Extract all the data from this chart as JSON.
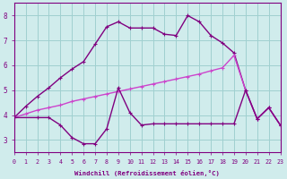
{
  "line1_x": [
    0,
    1,
    2,
    3,
    4,
    5,
    6,
    7,
    8,
    9,
    10,
    11,
    12,
    13,
    14,
    15,
    16,
    17,
    18,
    19,
    20,
    21,
    22,
    23
  ],
  "line1_y": [
    3.9,
    4.35,
    4.75,
    5.1,
    5.5,
    5.85,
    6.15,
    6.85,
    7.55,
    7.75,
    7.5,
    7.5,
    7.5,
    7.25,
    7.2,
    8.0,
    7.75,
    7.2,
    6.9,
    6.5,
    5.0,
    3.85,
    4.3,
    3.6
  ],
  "line2_x": [
    0,
    1,
    2,
    3,
    4,
    5,
    6,
    7,
    8,
    9,
    10,
    11,
    12,
    13,
    14,
    15,
    16,
    17,
    18,
    19,
    20,
    21,
    22,
    23
  ],
  "line2_y": [
    3.9,
    4.05,
    4.2,
    4.3,
    4.4,
    4.55,
    4.65,
    4.75,
    4.85,
    4.95,
    5.05,
    5.15,
    5.25,
    5.35,
    5.45,
    5.55,
    5.65,
    5.78,
    5.9,
    6.4,
    5.0,
    3.85,
    4.3,
    3.6
  ],
  "line3_x": [
    0,
    2,
    3,
    4,
    5,
    6,
    7,
    8,
    9,
    10,
    11,
    12,
    13,
    14,
    15,
    16,
    17,
    18,
    19,
    20,
    21,
    22,
    23
  ],
  "line3_y": [
    3.9,
    3.9,
    3.9,
    3.6,
    3.1,
    2.85,
    2.85,
    3.45,
    5.1,
    4.1,
    3.6,
    3.65,
    3.65,
    3.65,
    3.65,
    3.65,
    3.65,
    3.65,
    3.65,
    5.0,
    3.85,
    4.3,
    3.6
  ],
  "line1_color": "#800080",
  "line2_color": "#cc44cc",
  "line3_color": "#800080",
  "bg_color": "#d0ecec",
  "grid_color": "#a0d0d0",
  "xlabel": "Windchill (Refroidissement éolien,°C)",
  "xlim": [
    0,
    23
  ],
  "ylim": [
    2.5,
    8.5
  ],
  "yticks": [
    3,
    4,
    5,
    6,
    7,
    8
  ],
  "xticks": [
    0,
    1,
    2,
    3,
    4,
    5,
    6,
    7,
    8,
    9,
    10,
    11,
    12,
    13,
    14,
    15,
    16,
    17,
    18,
    19,
    20,
    21,
    22,
    23
  ]
}
